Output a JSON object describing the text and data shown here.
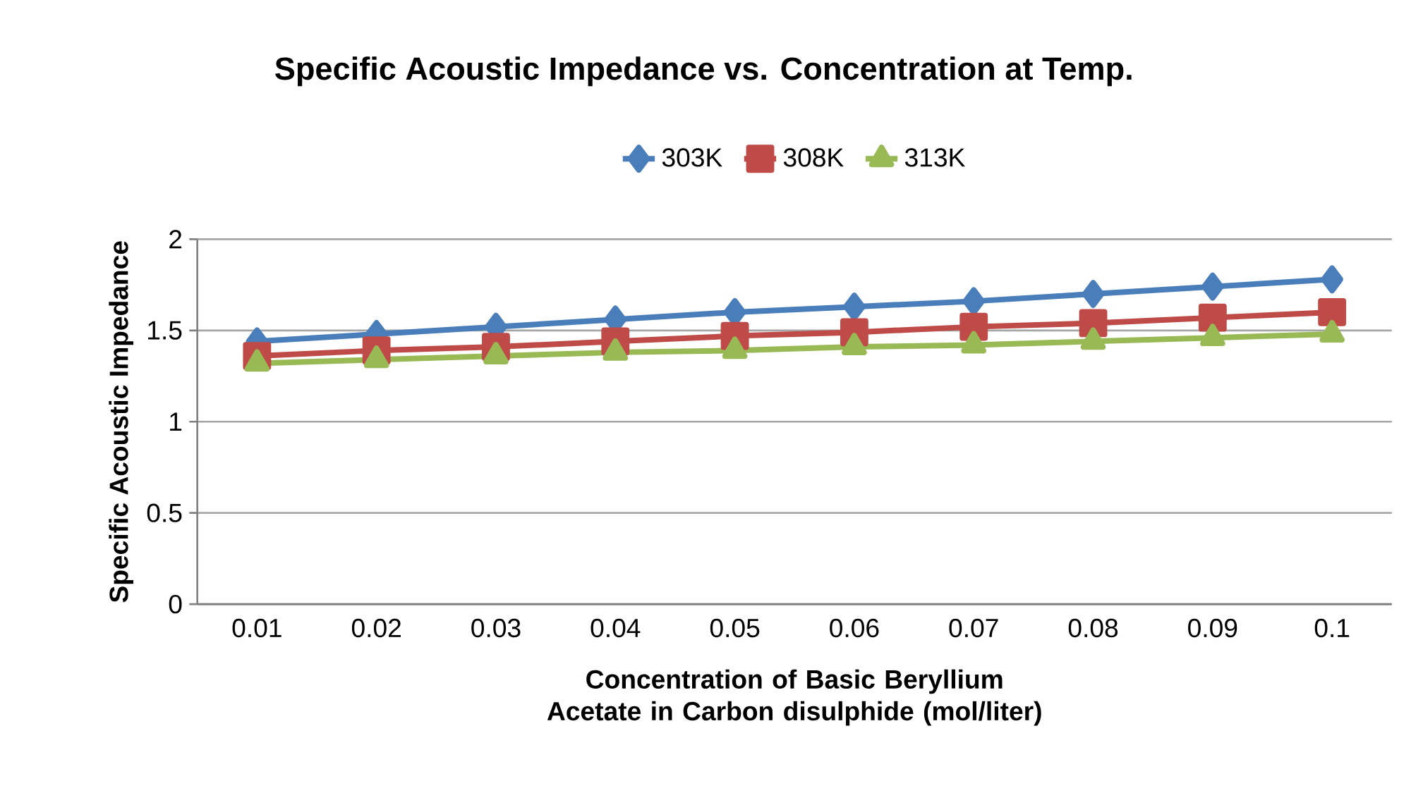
{
  "chart_data": {
    "type": "line",
    "title": "Specific Acoustic Impedance vs. Concentration at Temp.",
    "xlabel": "Concentration of Basic Beryllium Acetate in Carbon disulphide (mol/liter)",
    "ylabel": "Specific Acoustic Impedance",
    "categories": [
      "0.01",
      "0.02",
      "0.03",
      "0.04",
      "0.05",
      "0.06",
      "0.07",
      "0.08",
      "0.09",
      "0.1"
    ],
    "series": [
      {
        "name": "303K",
        "color": "#4a7ebb",
        "marker": "diamond",
        "values": [
          1.44,
          1.48,
          1.52,
          1.56,
          1.6,
          1.63,
          1.66,
          1.7,
          1.74,
          1.78
        ]
      },
      {
        "name": "308K",
        "color": "#be4b48",
        "marker": "square",
        "values": [
          1.36,
          1.39,
          1.41,
          1.44,
          1.47,
          1.49,
          1.52,
          1.54,
          1.57,
          1.6
        ]
      },
      {
        "name": "313K",
        "color": "#98b954",
        "marker": "triangle",
        "values": [
          1.32,
          1.34,
          1.36,
          1.38,
          1.39,
          1.41,
          1.42,
          1.44,
          1.46,
          1.48
        ]
      }
    ],
    "ylim": [
      0,
      2
    ],
    "yticks": [
      0,
      0.5,
      1,
      1.5,
      2
    ],
    "grid": "y",
    "legend": "top",
    "line_style": "solid"
  }
}
